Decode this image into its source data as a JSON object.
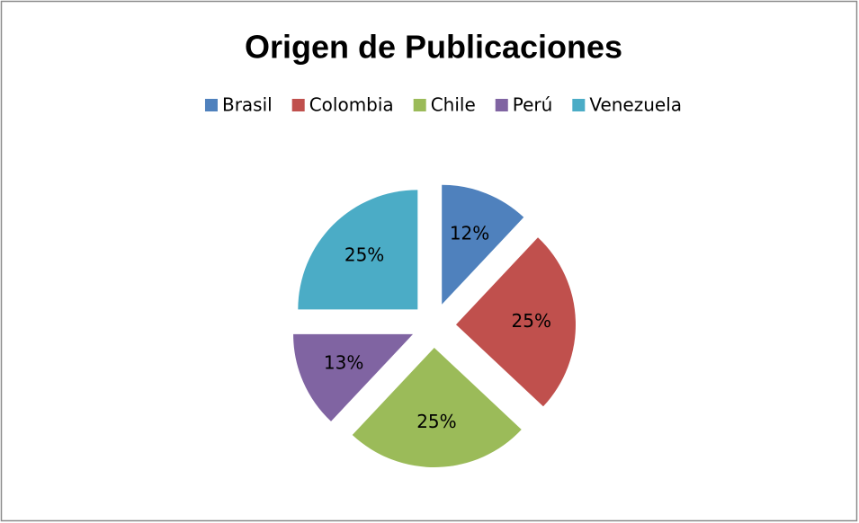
{
  "chart_data": {
    "type": "pie",
    "title": "Origen de Publicaciones",
    "categories": [
      "Brasil",
      "Colombia",
      "Chile",
      "Perú",
      "Venezuela"
    ],
    "values": [
      12,
      25,
      25,
      13,
      25
    ],
    "value_labels": [
      "12%",
      "25%",
      "25%",
      "13%",
      "25%"
    ],
    "colors": [
      "#4f81bd",
      "#c0504d",
      "#9bbb59",
      "#8064a2",
      "#4bacc6"
    ],
    "exploded": true,
    "legend": "top"
  }
}
